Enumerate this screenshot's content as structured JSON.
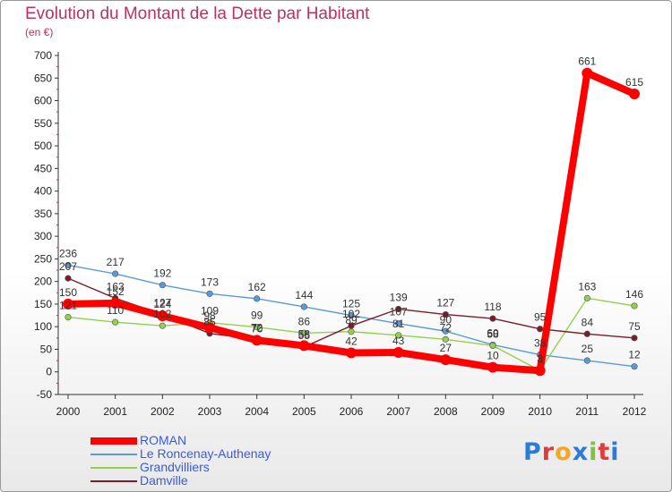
{
  "chart_data": {
    "type": "line",
    "title": "Evolution du Montant de la Dette par Habitant",
    "subtitle": "(en €)",
    "categories": [
      "2000",
      "2001",
      "2002",
      "2003",
      "2004",
      "2005",
      "2006",
      "2007",
      "2008",
      "2009",
      "2010",
      "2011",
      "2012"
    ],
    "ylim": [
      -50,
      700
    ],
    "yticks": [
      -50,
      0,
      50,
      100,
      150,
      200,
      250,
      300,
      350,
      400,
      450,
      500,
      550,
      600,
      650,
      700
    ],
    "grid": false,
    "legend_position": "bottom-left",
    "series": [
      {
        "name": "ROMAN",
        "color": "#ff0000",
        "values": [
          150,
          152,
          124,
          98,
          70,
          58,
          42,
          43,
          27,
          10,
          3,
          661,
          615
        ]
      },
      {
        "name": "Le Roncenay-Authenay",
        "color": "#5b9bd5",
        "values": [
          236,
          217,
          192,
          173,
          162,
          144,
          125,
          107,
          90,
          60,
          38,
          25,
          12
        ]
      },
      {
        "name": "Grandvilliers",
        "color": "#92d050",
        "values": [
          121,
          110,
          102,
          109,
          99,
          86,
          89,
          81,
          72,
          58,
          3,
          163,
          146
        ]
      },
      {
        "name": "Damville",
        "color": "#7b1c2a",
        "values": [
          207,
          163,
          127,
          85,
          72,
          55,
          102,
          139,
          127,
          118,
          95,
          84,
          75
        ]
      }
    ]
  },
  "branding": {
    "logo_text": "Proxiti"
  }
}
